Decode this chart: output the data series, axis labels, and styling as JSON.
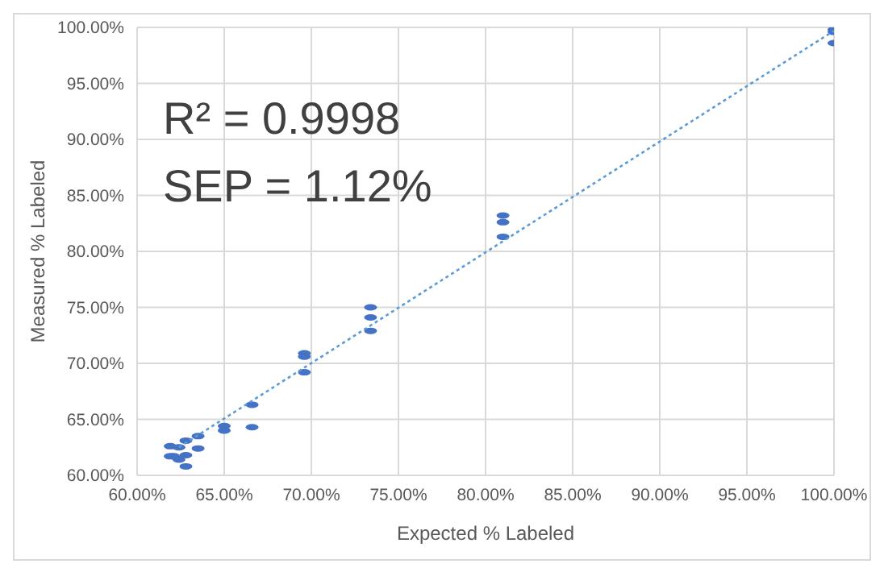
{
  "chart_data": {
    "type": "scatter",
    "xlabel": "Expected % Labeled",
    "ylabel": "Measured  % Labeled",
    "annotations": [
      "R² = 0.9998",
      "SEP = 1.12%"
    ],
    "series": [
      {
        "type": "scatter",
        "color": "#4472c4",
        "x": [
          61.9,
          61.9,
          62.1,
          62.4,
          62.4,
          62.8,
          62.8,
          62.8,
          63.5,
          63.5,
          65.0,
          65.0,
          66.6,
          66.6,
          69.6,
          69.6,
          69.6,
          73.4,
          73.4,
          73.4,
          81.0,
          81.0,
          81.0,
          100,
          100,
          100
        ],
        "values": [
          62.6,
          61.7,
          61.7,
          62.5,
          61.4,
          63.1,
          61.8,
          60.8,
          63.5,
          62.4,
          64.4,
          64.0,
          66.3,
          64.3,
          70.9,
          70.6,
          69.2,
          75.0,
          74.1,
          72.9,
          83.2,
          82.6,
          81.3,
          99.8,
          99.6,
          98.6
        ]
      },
      {
        "type": "line",
        "color": "#5b9bd5",
        "line_style": "dotted",
        "x": [
          62.4,
          100
        ],
        "values": [
          62.5,
          99.7
        ]
      }
    ],
    "xlim": [
      60,
      100
    ],
    "ylim": [
      60,
      100
    ],
    "xticks": [
      {
        "value": 60,
        "label": "60.00%"
      },
      {
        "value": 65,
        "label": "65.00%"
      },
      {
        "value": 70,
        "label": "70.00%"
      },
      {
        "value": 75,
        "label": "75.00%"
      },
      {
        "value": 80,
        "label": "80.00%"
      },
      {
        "value": 85,
        "label": "85.00%"
      },
      {
        "value": 90,
        "label": "90.00%"
      },
      {
        "value": 95,
        "label": "95.00%"
      },
      {
        "value": 100,
        "label": "100.00%"
      }
    ],
    "yticks": [
      {
        "value": 60,
        "label": "60.00%"
      },
      {
        "value": 65,
        "label": "65.00%"
      },
      {
        "value": 70,
        "label": "70.00%"
      },
      {
        "value": 75,
        "label": "75.00%"
      },
      {
        "value": 80,
        "label": "80.00%"
      },
      {
        "value": 85,
        "label": "85.00%"
      },
      {
        "value": 90,
        "label": "90.00%"
      },
      {
        "value": 95,
        "label": "95.00%"
      },
      {
        "value": 100,
        "label": "100.00%"
      }
    ],
    "grid": true,
    "legend": false
  }
}
